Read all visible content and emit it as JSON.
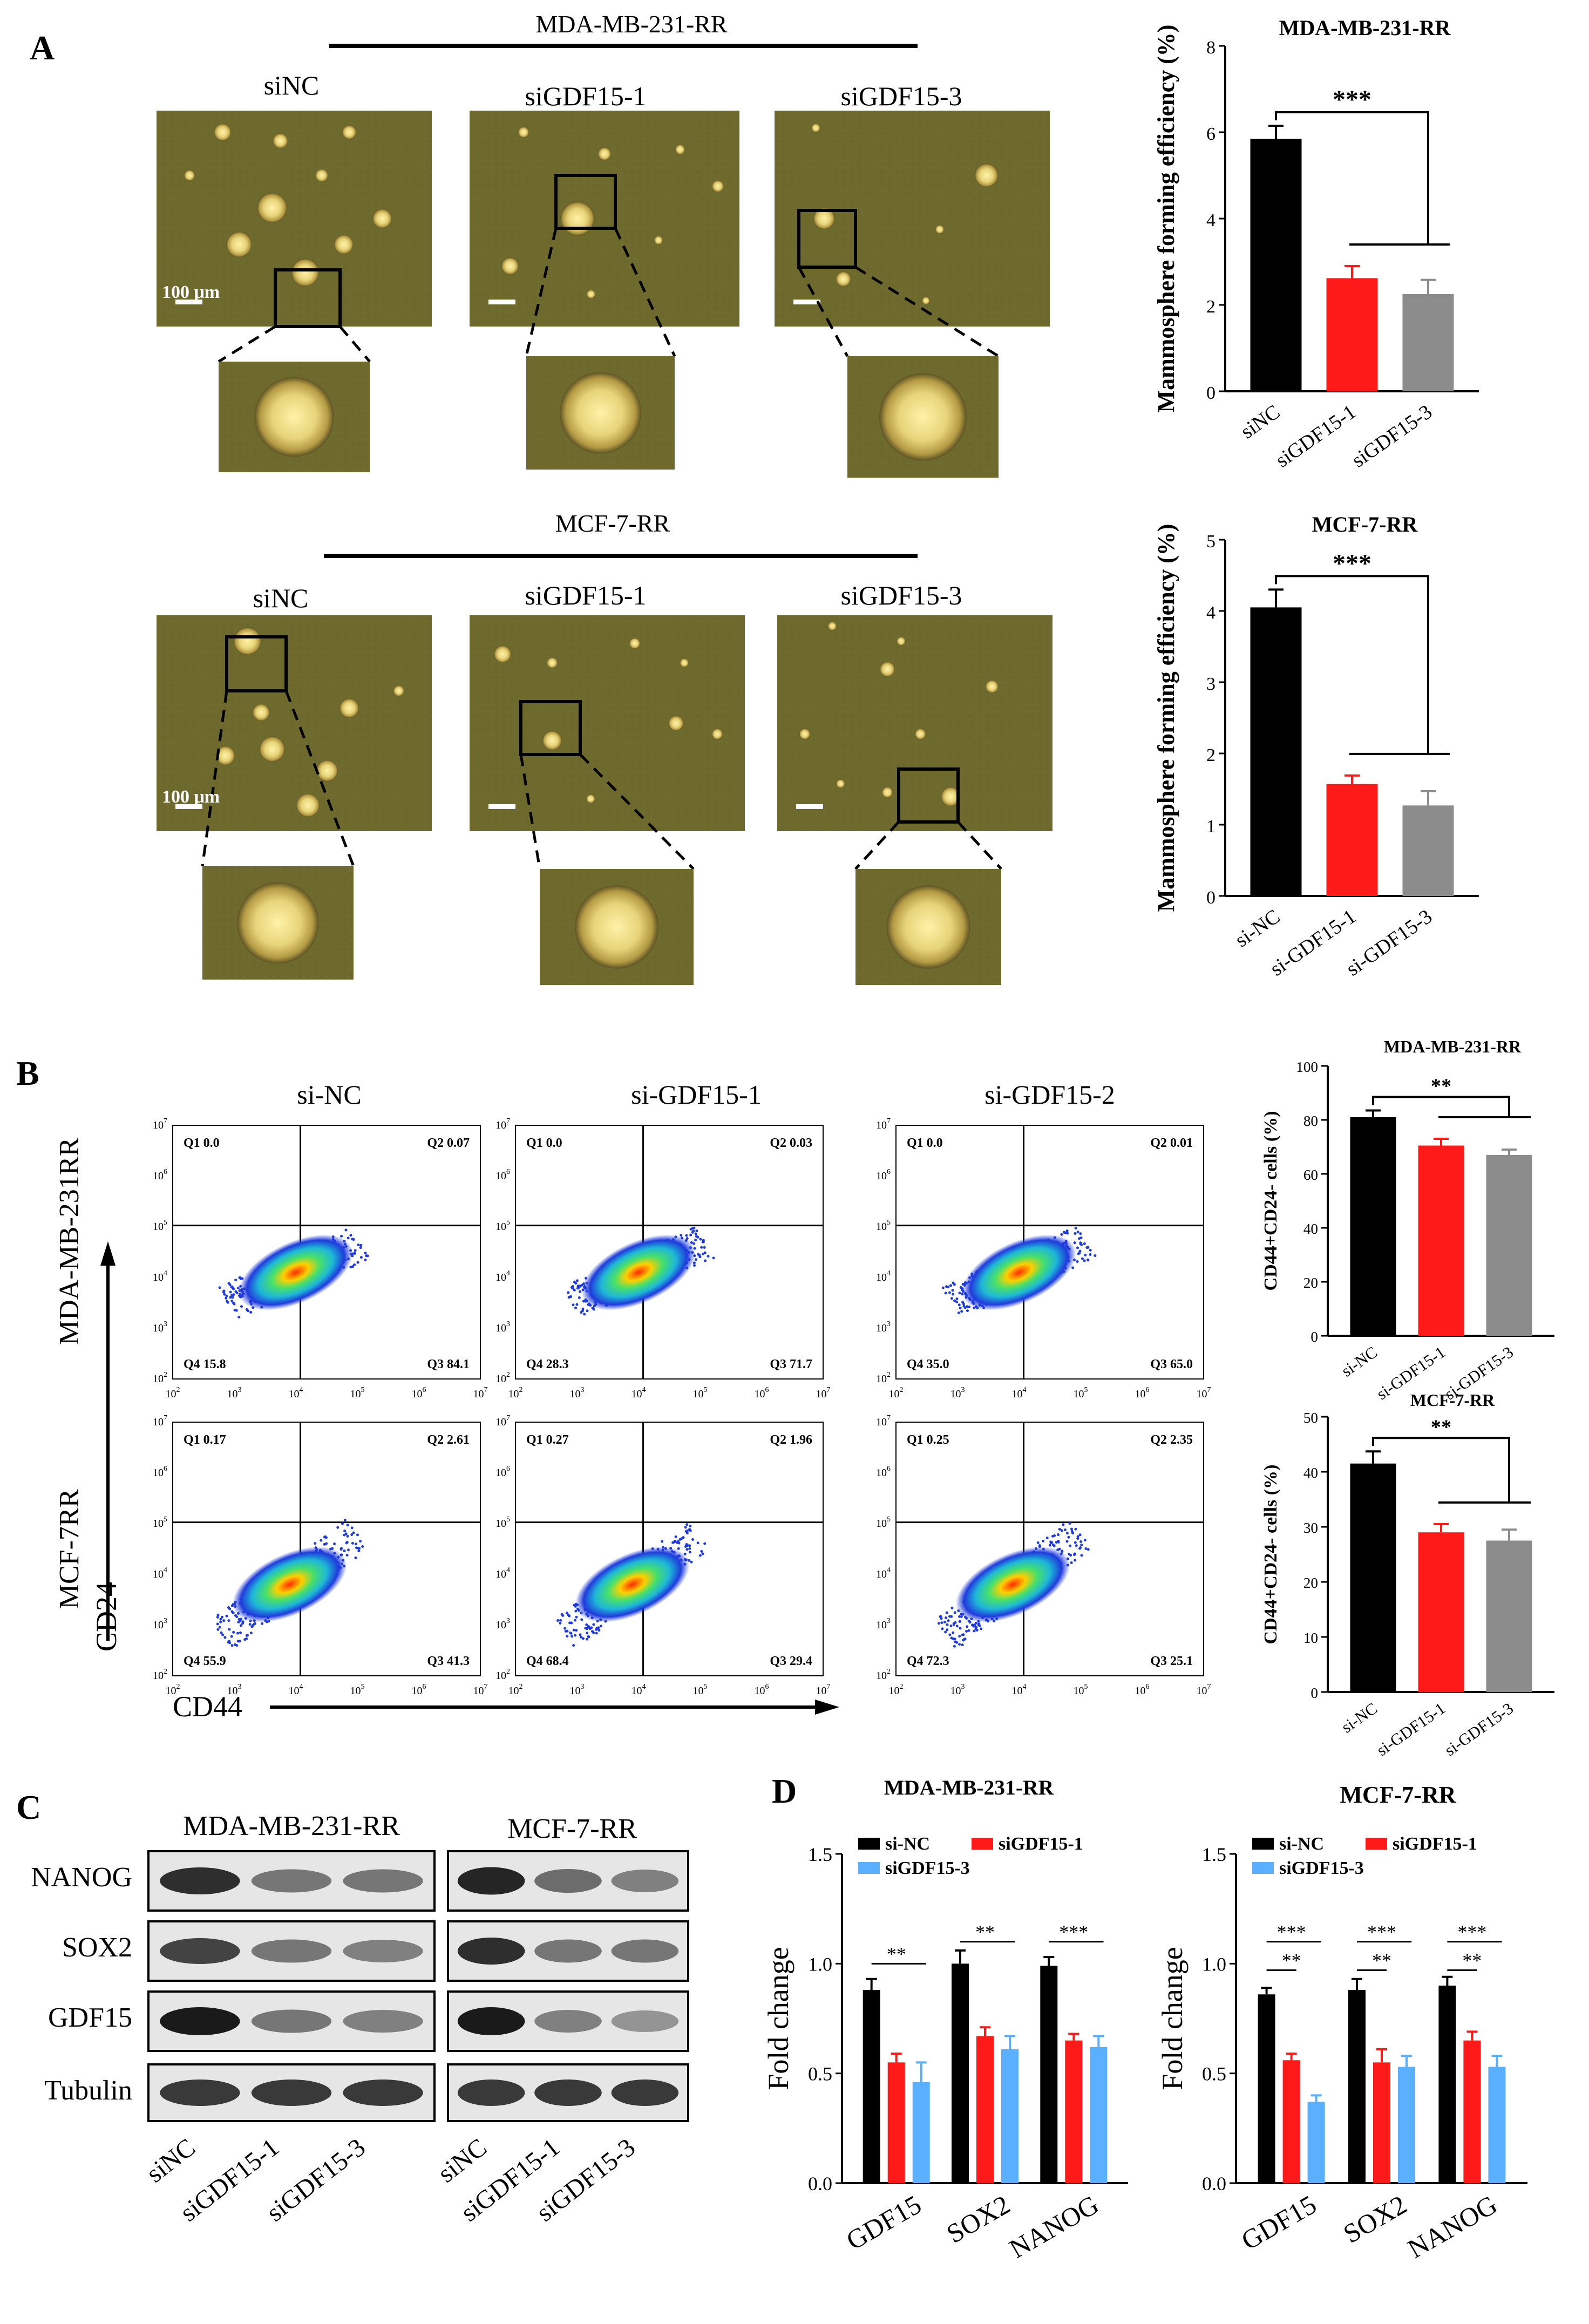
{
  "panels": {
    "A": "A",
    "B": "B",
    "C": "C",
    "D": "D"
  },
  "colors": {
    "black": "#000000",
    "red": "#ff1a1a",
    "gray": "#8c8c8c",
    "blue": "#5ab0ff",
    "micro": "#6e6a2e"
  },
  "panel_a": {
    "top_line_title": "MDA-MB-231-RR",
    "bottom_line_title": "MCF-7-RR",
    "top_labels": [
      "siNC",
      "siGDF15-1",
      "siGDF15-3"
    ],
    "bottom_labels": [
      "siNC",
      "siGDF15-1",
      "siGDF15-3"
    ],
    "scale_label": "100 μm"
  },
  "panel_b": {
    "column_labels": [
      "si-NC",
      "si-GDF15-1",
      "si-GDF15-2"
    ],
    "row_labels": [
      "MDA-MB-231RR",
      "MCF-7RR"
    ],
    "y_axis": "CD24",
    "x_axis": "CD44",
    "tick_exponents": [
      "2",
      "3",
      "4",
      "5",
      "6",
      "7"
    ],
    "quadrants": [
      [
        [
          "Q1 0.0",
          "Q2 0.07",
          "Q3 84.1",
          "Q4 15.8"
        ],
        [
          "Q1 0.0",
          "Q2 0.03",
          "Q3 71.7",
          "Q4 28.3"
        ],
        [
          "Q1 0.0",
          "Q2 0.01",
          "Q3 65.0",
          "Q4 35.0"
        ]
      ],
      [
        [
          "Q1 0.17",
          "Q2 2.61",
          "Q3 41.3",
          "Q4 55.9"
        ],
        [
          "Q1 0.27",
          "Q2 1.96",
          "Q3 29.4",
          "Q4 68.4"
        ],
        [
          "Q1 0.25",
          "Q2 2.35",
          "Q3 25.1",
          "Q4 72.3"
        ]
      ]
    ]
  },
  "panel_c": {
    "group_labels": [
      "MDA-MB-231-RR",
      "MCF-7-RR"
    ],
    "proteins": [
      "NANOG",
      "SOX2",
      "GDF15",
      "Tubulin"
    ],
    "lane_labels": [
      "siNC",
      "siGDF15-1",
      "siGDF15-3",
      "siNC",
      "siGDF15-1",
      "siGDF15-3"
    ]
  },
  "chart_data": [
    {
      "type": "bar",
      "title": "MDA-MB-231-RR",
      "ylabel": "Mammosphere forming efficiency (%)",
      "categories": [
        "siNC",
        "siGDF15-1",
        "siGDF15-3"
      ],
      "values": [
        5.85,
        2.62,
        2.25
      ],
      "errors": [
        0.3,
        0.28,
        0.33
      ],
      "ylim": [
        0,
        8
      ],
      "yticks": [
        0,
        2,
        4,
        6,
        8
      ],
      "significance": "***"
    },
    {
      "type": "bar",
      "title": "MCF-7-RR",
      "ylabel": "Mammosphere forming efficiency (%)",
      "categories": [
        "si-NC",
        "si-GDF15-1",
        "si-GDF15-3"
      ],
      "values": [
        4.05,
        1.57,
        1.27
      ],
      "errors": [
        0.25,
        0.12,
        0.2
      ],
      "ylim": [
        0,
        5
      ],
      "yticks": [
        0,
        1,
        2,
        3,
        4,
        5
      ],
      "significance": "***"
    },
    {
      "type": "bar",
      "title": "MDA-MB-231-RR",
      "ylabel": "CD44+CD24- cells (%)",
      "categories": [
        "si-NC",
        "si-GDF15-1",
        "si-GDF15-3"
      ],
      "values": [
        81,
        70.5,
        67
      ],
      "errors": [
        2.5,
        2.5,
        2
      ],
      "ylim": [
        0,
        100
      ],
      "yticks": [
        0,
        20,
        40,
        60,
        80,
        100
      ],
      "significance": "**"
    },
    {
      "type": "bar",
      "title": "MCF-7-RR",
      "ylabel": "CD44+CD24- cells (%)",
      "categories": [
        "si-NC",
        "si-GDF15-1",
        "si-GDF15-3"
      ],
      "values": [
        41.5,
        29,
        27.5
      ],
      "errors": [
        2.2,
        1.5,
        2
      ],
      "ylim": [
        0,
        50
      ],
      "yticks": [
        0,
        10,
        20,
        30,
        40,
        50
      ],
      "significance": "**"
    },
    {
      "type": "bar",
      "title": "MDA-MB-231-RR",
      "ylabel": "Fold change",
      "categories": [
        "GDF15",
        "SOX2",
        "NANOG"
      ],
      "series": [
        {
          "name": "si-NC",
          "values": [
            0.88,
            1.0,
            0.99
          ],
          "errors": [
            0.05,
            0.06,
            0.04
          ]
        },
        {
          "name": "siGDF15-1",
          "values": [
            0.55,
            0.67,
            0.65
          ],
          "errors": [
            0.04,
            0.04,
            0.03
          ]
        },
        {
          "name": "siGDF15-3",
          "values": [
            0.46,
            0.61,
            0.62
          ],
          "errors": [
            0.09,
            0.06,
            0.05
          ]
        }
      ],
      "ylim": [
        0,
        1.5
      ],
      "yticks": [
        "0.0",
        "0.5",
        "1.0",
        "1.5"
      ],
      "significance": [
        "**",
        "**",
        "***"
      ]
    },
    {
      "type": "bar",
      "title": "MCF-7-RR",
      "ylabel": "Fold change",
      "categories": [
        "GDF15",
        "SOX2",
        "NANOG"
      ],
      "series": [
        {
          "name": "si-NC",
          "values": [
            0.86,
            0.88,
            0.9
          ],
          "errors": [
            0.03,
            0.05,
            0.04
          ]
        },
        {
          "name": "siGDF15-1",
          "values": [
            0.56,
            0.55,
            0.65
          ],
          "errors": [
            0.03,
            0.06,
            0.04
          ]
        },
        {
          "name": "siGDF15-3",
          "values": [
            0.37,
            0.53,
            0.53
          ],
          "errors": [
            0.03,
            0.05,
            0.05
          ]
        }
      ],
      "ylim": [
        0,
        1.5
      ],
      "yticks": [
        "0.0",
        "0.5",
        "1.0",
        "1.5"
      ],
      "significance": [
        "***",
        "**",
        "***",
        "**",
        "***",
        "**"
      ]
    }
  ]
}
